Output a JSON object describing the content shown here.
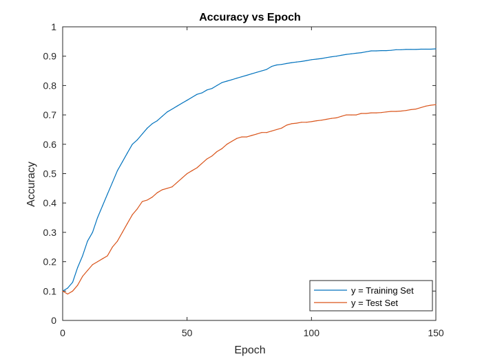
{
  "chart_data": {
    "type": "line",
    "title": "Accuracy vs Epoch",
    "xlabel": "Epoch",
    "ylabel": "Accuracy",
    "xlim": [
      0,
      150
    ],
    "ylim": [
      0,
      1
    ],
    "xticks": [
      0,
      50,
      100,
      150
    ],
    "yticks": [
      0,
      0.1,
      0.2,
      0.3,
      0.4,
      0.5,
      0.6,
      0.7,
      0.8,
      0.9,
      1
    ],
    "grid": false,
    "legend_position": "bottom-right",
    "series": [
      {
        "name": "y = Training Set",
        "color": "#0072BD",
        "x": [
          0,
          2,
          4,
          6,
          8,
          10,
          12,
          14,
          16,
          18,
          20,
          22,
          24,
          26,
          28,
          30,
          32,
          34,
          36,
          38,
          40,
          42,
          44,
          46,
          48,
          50,
          52,
          54,
          56,
          58,
          60,
          62,
          64,
          66,
          68,
          70,
          72,
          74,
          76,
          78,
          80,
          82,
          84,
          86,
          88,
          90,
          92,
          94,
          96,
          98,
          100,
          102,
          104,
          106,
          108,
          110,
          112,
          114,
          116,
          118,
          120,
          122,
          124,
          126,
          128,
          130,
          132,
          134,
          136,
          138,
          140,
          142,
          144,
          146,
          148,
          150
        ],
        "y": [
          0.1,
          0.11,
          0.13,
          0.18,
          0.22,
          0.27,
          0.3,
          0.35,
          0.39,
          0.43,
          0.47,
          0.51,
          0.54,
          0.57,
          0.6,
          0.615,
          0.635,
          0.655,
          0.67,
          0.68,
          0.695,
          0.71,
          0.72,
          0.73,
          0.74,
          0.75,
          0.76,
          0.77,
          0.775,
          0.785,
          0.79,
          0.8,
          0.81,
          0.815,
          0.82,
          0.825,
          0.83,
          0.835,
          0.84,
          0.845,
          0.85,
          0.855,
          0.865,
          0.87,
          0.872,
          0.875,
          0.878,
          0.88,
          0.882,
          0.885,
          0.888,
          0.89,
          0.892,
          0.895,
          0.898,
          0.9,
          0.903,
          0.906,
          0.908,
          0.91,
          0.912,
          0.915,
          0.918,
          0.918,
          0.919,
          0.919,
          0.92,
          0.922,
          0.922,
          0.923,
          0.923,
          0.923,
          0.924,
          0.924,
          0.924,
          0.925
        ]
      },
      {
        "name": "y = Test Set",
        "color": "#D95319",
        "x": [
          0,
          2,
          4,
          6,
          8,
          10,
          12,
          14,
          16,
          18,
          20,
          22,
          24,
          26,
          28,
          30,
          32,
          34,
          36,
          38,
          40,
          42,
          44,
          46,
          48,
          50,
          52,
          54,
          56,
          58,
          60,
          62,
          64,
          66,
          68,
          70,
          72,
          74,
          76,
          78,
          80,
          82,
          84,
          86,
          88,
          90,
          92,
          94,
          96,
          98,
          100,
          102,
          104,
          106,
          108,
          110,
          112,
          114,
          116,
          118,
          120,
          122,
          124,
          126,
          128,
          130,
          132,
          134,
          136,
          138,
          140,
          142,
          144,
          146,
          148,
          150
        ],
        "y": [
          0.1,
          0.09,
          0.1,
          0.12,
          0.15,
          0.17,
          0.19,
          0.2,
          0.21,
          0.22,
          0.25,
          0.27,
          0.3,
          0.33,
          0.36,
          0.38,
          0.405,
          0.41,
          0.42,
          0.435,
          0.445,
          0.45,
          0.455,
          0.47,
          0.485,
          0.5,
          0.51,
          0.52,
          0.535,
          0.55,
          0.56,
          0.575,
          0.585,
          0.6,
          0.61,
          0.62,
          0.625,
          0.625,
          0.63,
          0.635,
          0.64,
          0.64,
          0.645,
          0.65,
          0.655,
          0.665,
          0.67,
          0.672,
          0.675,
          0.675,
          0.677,
          0.68,
          0.682,
          0.685,
          0.688,
          0.69,
          0.695,
          0.7,
          0.7,
          0.7,
          0.705,
          0.705,
          0.707,
          0.707,
          0.708,
          0.71,
          0.712,
          0.712,
          0.713,
          0.715,
          0.718,
          0.72,
          0.725,
          0.73,
          0.733,
          0.735
        ]
      }
    ]
  }
}
